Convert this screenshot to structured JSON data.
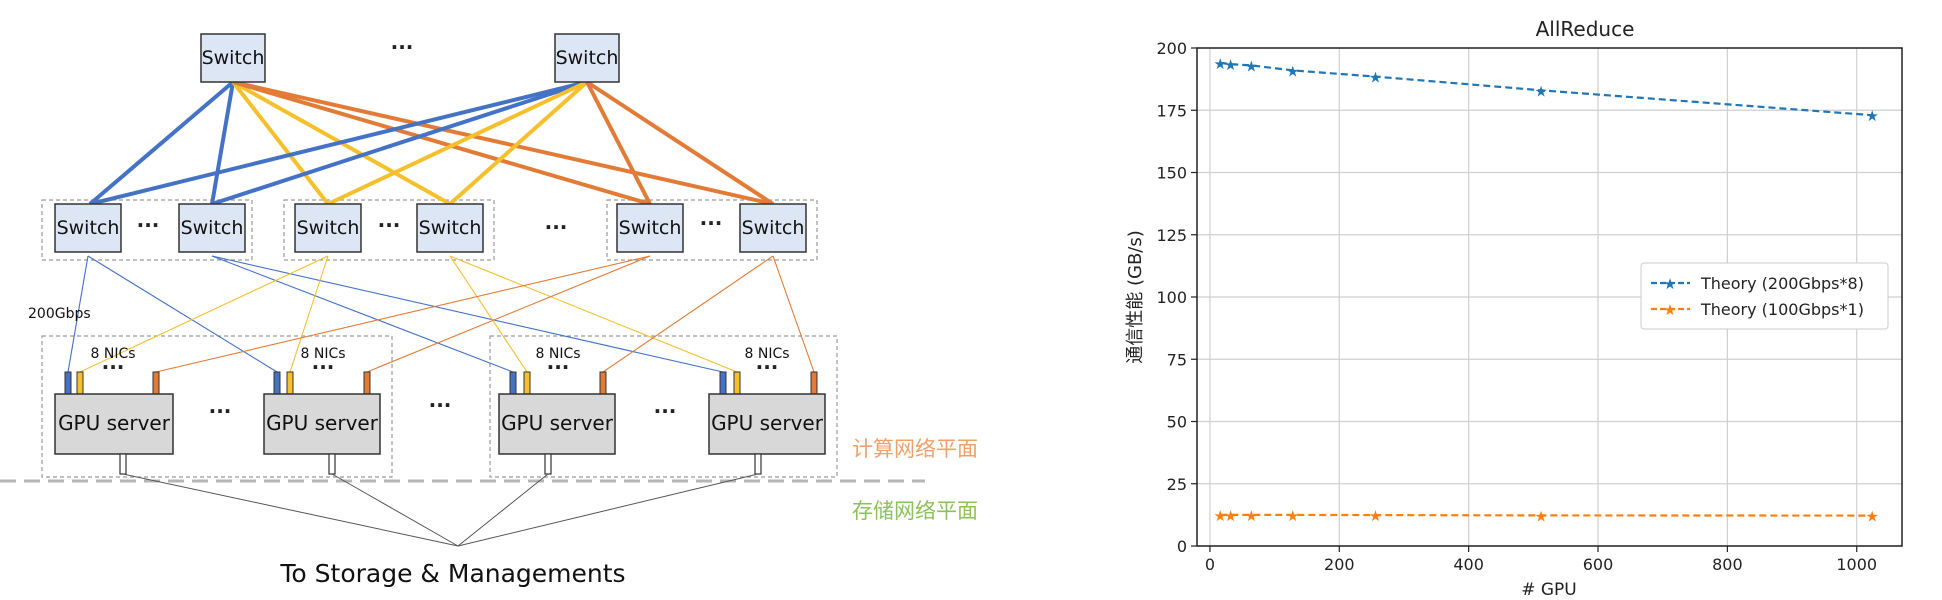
{
  "diagram": {
    "switch_label": "Switch",
    "gpu_server_label": "GPU server",
    "nics_label": "8 NICs",
    "ellipsis": "···",
    "link_speed_label": "200Gbps",
    "compute_plane_label": "计算网络平面",
    "storage_plane_label": "存储网络平面",
    "storage_label": "To Storage & Managements",
    "colors": {
      "blue": "#4472c4",
      "yellow": "#f5c02c",
      "orange": "#e27b35",
      "compute_plane": "#f0a06a",
      "storage_plane": "#8cc15a"
    }
  },
  "chart_data": {
    "type": "line",
    "title": "AllReduce",
    "xlabel": "# GPU",
    "ylabel": "通信性能 (GB/s)",
    "xlim": [
      -20,
      1070
    ],
    "ylim": [
      0,
      200
    ],
    "xticks": [
      0,
      200,
      400,
      600,
      800,
      1000
    ],
    "yticks": [
      0,
      25,
      50,
      75,
      100,
      125,
      150,
      175,
      200
    ],
    "grid": true,
    "legend_position": "center-right",
    "series": [
      {
        "name": "Theory (200Gbps*8)",
        "color": "#1f77b4",
        "x": [
          16,
          32,
          64,
          128,
          256,
          512,
          1024
        ],
        "y": [
          194,
          193.5,
          193,
          191,
          188.5,
          183,
          173
        ]
      },
      {
        "name": "Theory (100Gbps*1)",
        "color": "#ff7f0e",
        "x": [
          16,
          32,
          64,
          128,
          256,
          512,
          1024
        ],
        "y": [
          12.5,
          12.5,
          12.5,
          12.5,
          12.4,
          12.3,
          12.2
        ]
      }
    ]
  }
}
